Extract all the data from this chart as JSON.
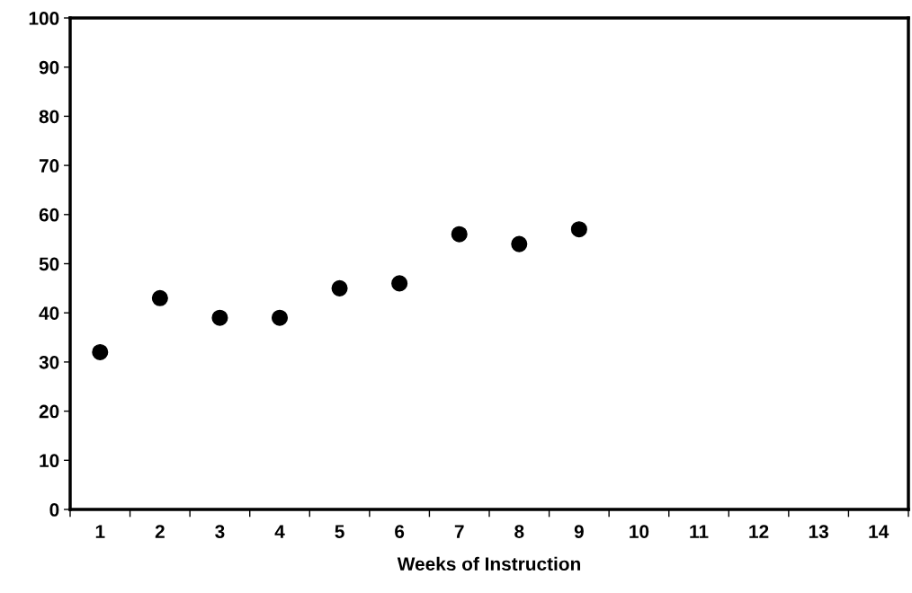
{
  "chart_data": {
    "type": "scatter",
    "xlabel": "Weeks of Instruction",
    "categories": [
      "1",
      "2",
      "3",
      "4",
      "5",
      "6",
      "7",
      "8",
      "9",
      "10",
      "11",
      "12",
      "13",
      "14"
    ],
    "values": [
      32,
      43,
      39,
      39,
      45,
      46,
      56,
      54,
      57,
      null,
      null,
      null,
      null,
      null
    ],
    "color": "#000000",
    "marker": "circle",
    "ylim": [
      0,
      100
    ],
    "yticks": [
      0,
      10,
      20,
      30,
      40,
      50,
      60,
      70,
      80,
      90,
      100
    ],
    "grid": false,
    "legend": false
  }
}
